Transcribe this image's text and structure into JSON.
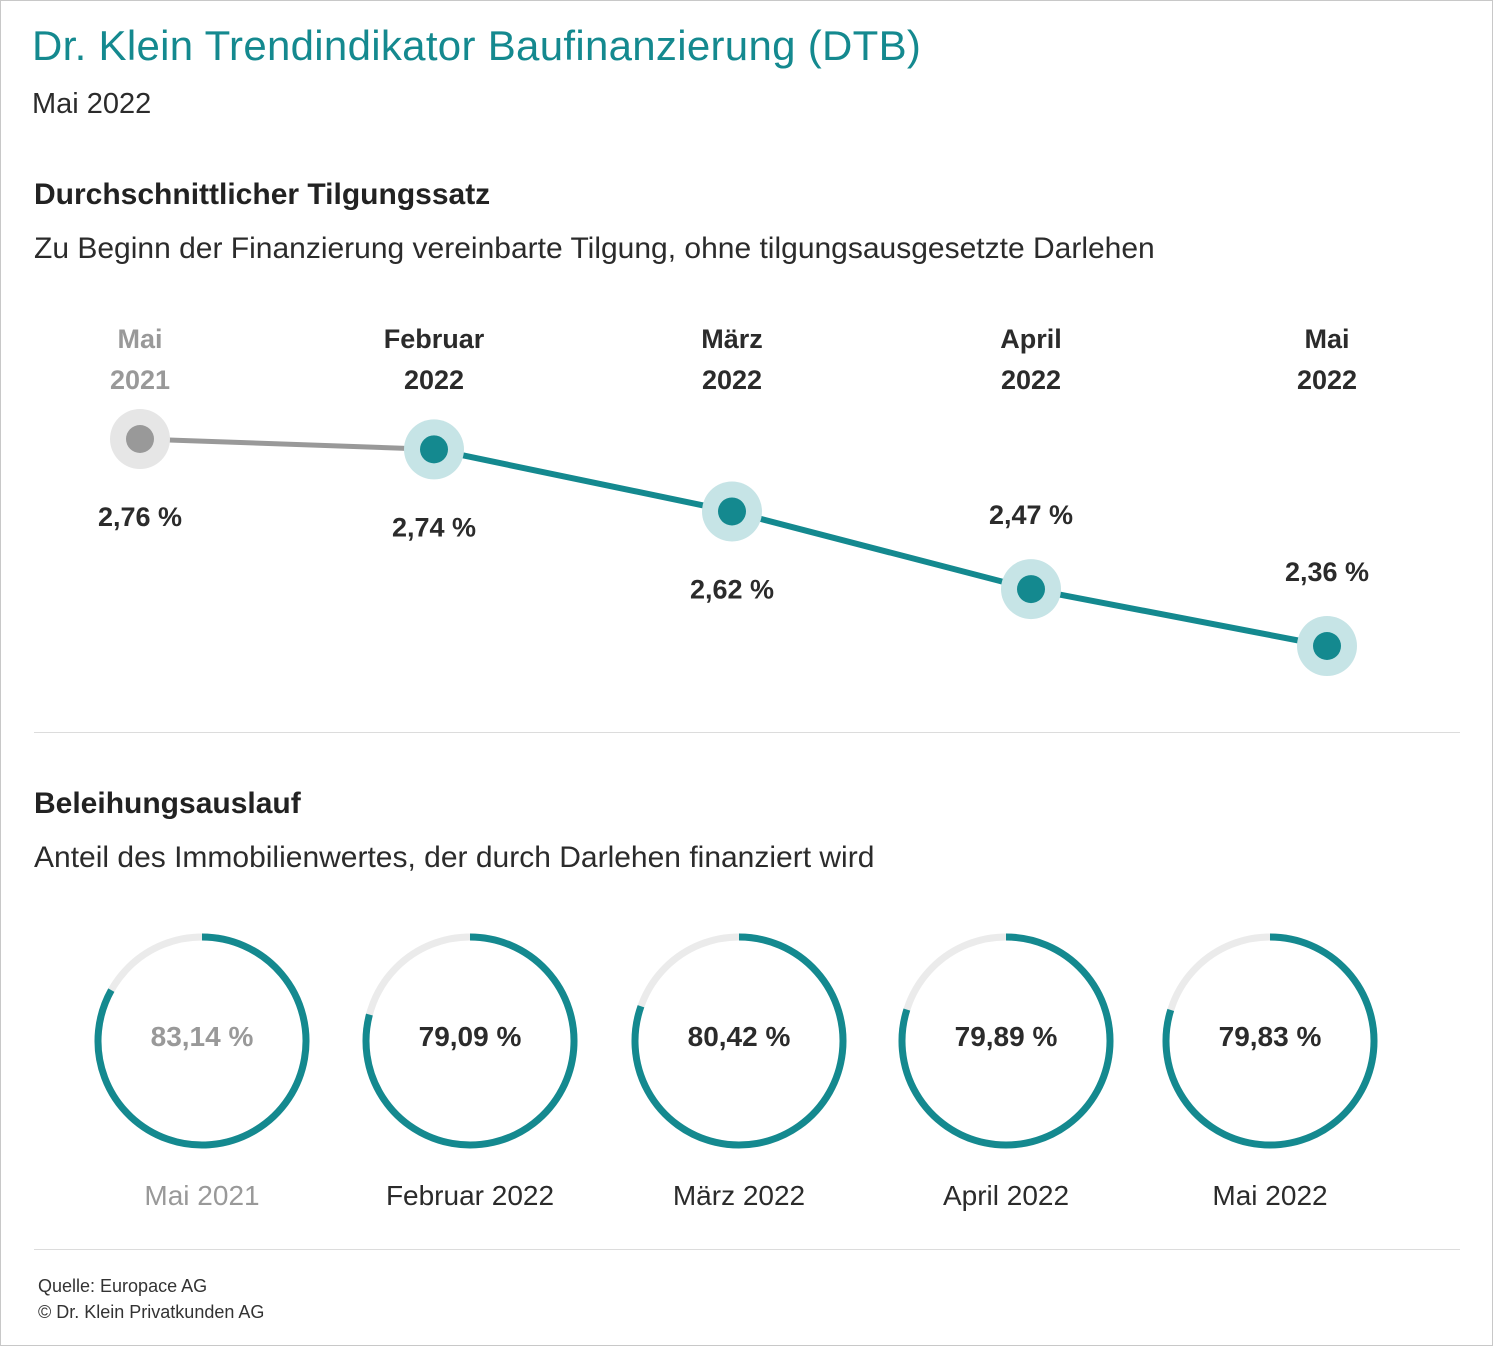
{
  "header": {
    "title": "Dr. Klein Trendindikator Baufinanzierung (DTB)",
    "date": "Mai 2022"
  },
  "colors": {
    "accent": "#14898f",
    "accent_light": "#c6e4e6",
    "past": "#999999",
    "past_light": "#e6e6e6",
    "ring_track": "#ebebeb"
  },
  "section1": {
    "title": "Durchschnittlicher Tilgungssatz",
    "subtitle": "Zu Beginn der Finanzierung vereinbarte Tilgung, ohne tilgungsausgesetzte Darlehen"
  },
  "section2": {
    "title": "Beleihungsauslauf",
    "subtitle": "Anteil des Immobilienwertes, der durch Darlehen finanziert wird"
  },
  "footer": {
    "source": "Quelle: Europace AG",
    "copyright": "© Dr. Klein Privatkunden AG"
  },
  "chart_data": [
    {
      "type": "line",
      "title": "Durchschnittlicher Tilgungssatz",
      "categories": [
        [
          "Mai",
          "2021"
        ],
        [
          "Februar",
          "2022"
        ],
        [
          "März",
          "2022"
        ],
        [
          "April",
          "2022"
        ],
        [
          "Mai",
          "2022"
        ]
      ],
      "values": [
        2.76,
        2.74,
        2.62,
        2.47,
        2.36
      ],
      "labels": [
        "2,76 %",
        "2,74 %",
        "2,62 %",
        "2,47 %",
        "2,36 %"
      ],
      "label_position": [
        "below",
        "below",
        "below",
        "above",
        "above"
      ],
      "highlight": [
        false,
        true,
        true,
        true,
        true
      ],
      "unit": "%"
    },
    {
      "type": "pie",
      "title": "Beleihungsauslauf",
      "categories": [
        "Mai 2021",
        "Februar 2022",
        "März 2022",
        "April 2022",
        "Mai 2022"
      ],
      "values": [
        83.14,
        79.09,
        80.42,
        79.89,
        79.83
      ],
      "labels": [
        "83,14 %",
        "79,09 %",
        "80,42 %",
        "79,89 %",
        "79,83 %"
      ],
      "highlight": [
        false,
        true,
        true,
        true,
        true
      ],
      "unit": "%"
    }
  ]
}
